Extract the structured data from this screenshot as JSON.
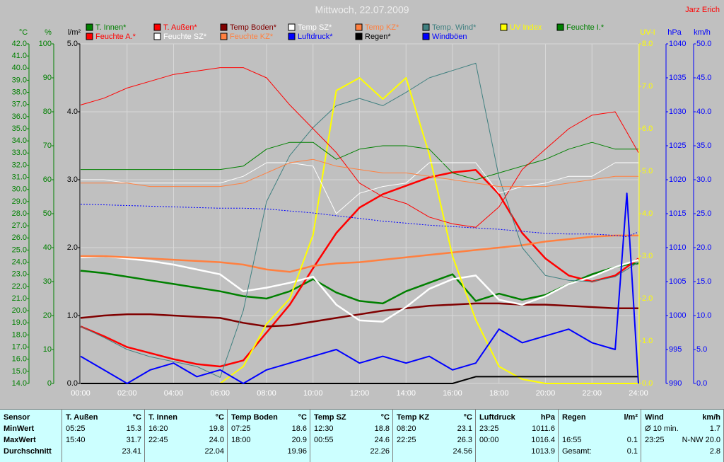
{
  "chart_data": {
    "type": "line",
    "title": "Mittwoch, 22.07.2009",
    "author": "Jarz Erich",
    "x": [
      0,
      1,
      2,
      3,
      4,
      5,
      6,
      7,
      8,
      9,
      10,
      11,
      12,
      13,
      14,
      15,
      16,
      17,
      18,
      19,
      20,
      21,
      22,
      23,
      23.5,
      24
    ],
    "xlim": [
      0,
      24
    ],
    "xticks": [
      {
        "value": 0,
        "label": "00:00"
      },
      {
        "value": 2,
        "label": "02:00"
      },
      {
        "value": 4,
        "label": "04:00"
      },
      {
        "value": 6,
        "label": "06:00"
      },
      {
        "value": 8,
        "label": "08:00"
      },
      {
        "value": 10,
        "label": "10:00"
      },
      {
        "value": 12,
        "label": "12:00"
      },
      {
        "value": 14,
        "label": "14:00"
      },
      {
        "value": 16,
        "label": "16:00"
      },
      {
        "value": 18,
        "label": "18:00"
      },
      {
        "value": 20,
        "label": "20:00"
      },
      {
        "value": 22,
        "label": "22:00"
      },
      {
        "value": 24,
        "label": "24:00"
      }
    ],
    "grid": true,
    "axes": [
      {
        "label": "°C",
        "side": "left",
        "color": "#008000",
        "lim": [
          14,
          42
        ],
        "ticks": [
          {
            "value": 14,
            "label": "14.0"
          },
          {
            "value": 15,
            "label": "15.0"
          },
          {
            "value": 16,
            "label": "16.0"
          },
          {
            "value": 17,
            "label": "17.0"
          },
          {
            "value": 18,
            "label": "18.0"
          },
          {
            "value": 19,
            "label": "19.0"
          },
          {
            "value": 20,
            "label": "20.0"
          },
          {
            "value": 21,
            "label": "21.0"
          },
          {
            "value": 22,
            "label": "22.0"
          },
          {
            "value": 23,
            "label": "23.0"
          },
          {
            "value": 24,
            "label": "24.0"
          },
          {
            "value": 25,
            "label": "25.0"
          },
          {
            "value": 26,
            "label": "26.0"
          },
          {
            "value": 27,
            "label": "27.0"
          },
          {
            "value": 28,
            "label": "28.0"
          },
          {
            "value": 29,
            "label": "29.0"
          },
          {
            "value": 30,
            "label": "30.0"
          },
          {
            "value": 31,
            "label": "31.0"
          },
          {
            "value": 32,
            "label": "32.0"
          },
          {
            "value": 33,
            "label": "33.0"
          },
          {
            "value": 34,
            "label": "34.0"
          },
          {
            "value": 35,
            "label": "35.0"
          },
          {
            "value": 36,
            "label": "36.0"
          },
          {
            "value": 37,
            "label": "37.0"
          },
          {
            "value": 38,
            "label": "38.0"
          },
          {
            "value": 39,
            "label": "39.0"
          },
          {
            "value": 40,
            "label": "40.0"
          },
          {
            "value": 41,
            "label": "41.0"
          },
          {
            "value": 42,
            "label": "42.0"
          }
        ]
      },
      {
        "label": "%",
        "side": "left",
        "color": "#008000",
        "lim": [
          0,
          100
        ],
        "ticks": [
          0,
          10,
          20,
          30,
          40,
          50,
          60,
          70,
          80,
          90,
          100
        ]
      },
      {
        "label": "l/m²",
        "side": "left",
        "color": "#000000",
        "lim": [
          0,
          5
        ],
        "grid": true,
        "ticks": [
          {
            "value": 0,
            "label": "0.0"
          },
          {
            "value": 1,
            "label": "1.0"
          },
          {
            "value": 2,
            "label": "2.0"
          },
          {
            "value": 3,
            "label": "3.0"
          },
          {
            "value": 4,
            "label": "4.0"
          },
          {
            "value": 5,
            "label": "5.0"
          }
        ]
      },
      {
        "label": "UV-I",
        "side": "right",
        "color": "#ffff00",
        "lim": [
          0,
          8
        ],
        "ticks": [
          {
            "value": 0,
            "label": "0.0"
          },
          {
            "value": 1,
            "label": "1.0"
          },
          {
            "value": 2,
            "label": "2.0"
          },
          {
            "value": 3,
            "label": "3.0"
          },
          {
            "value": 4,
            "label": "4.0"
          },
          {
            "value": 5,
            "label": "5.0"
          },
          {
            "value": 6,
            "label": "6.0"
          },
          {
            "value": 7,
            "label": "7.0"
          },
          {
            "value": 8,
            "label": "8.0"
          }
        ]
      },
      {
        "label": "hPa",
        "side": "right",
        "color": "#0000ff",
        "lim": [
          990,
          1040
        ],
        "ticks": [
          990,
          995,
          1000,
          1005,
          1010,
          1015,
          1020,
          1025,
          1030,
          1035,
          1040
        ]
      },
      {
        "label": "km/h",
        "side": "right",
        "color": "#0000ff",
        "lim": [
          0,
          50
        ],
        "ticks": [
          {
            "value": 0,
            "label": "0.0"
          },
          {
            "value": 5,
            "label": "5.0"
          },
          {
            "value": 10,
            "label": "10.0"
          },
          {
            "value": 15,
            "label": "15.0"
          },
          {
            "value": 20,
            "label": "20.0"
          },
          {
            "value": 25,
            "label": "25.0"
          },
          {
            "value": 30,
            "label": "30.0"
          },
          {
            "value": 35,
            "label": "35.0"
          },
          {
            "value": 40,
            "label": "40.0"
          },
          {
            "value": 45,
            "label": "45.0"
          },
          {
            "value": 50,
            "label": "50.0"
          }
        ]
      }
    ],
    "series": [
      {
        "name": "T. Innen*",
        "color": "#008000",
        "axis": "°C",
        "linewidth": 2.5,
        "values": [
          23.3,
          23.1,
          22.8,
          22.5,
          22.2,
          21.9,
          21.6,
          21.2,
          21.0,
          21.6,
          22.6,
          21.5,
          20.8,
          20.6,
          21.6,
          22.3,
          23.0,
          20.8,
          21.4,
          20.9,
          21.3,
          22.2,
          23.0,
          23.6,
          23.8,
          23.9
        ]
      },
      {
        "name": "T. Außen*",
        "color": "#ff0000",
        "axis": "°C",
        "linewidth": 2.5,
        "values": [
          18.7,
          17.9,
          17.0,
          16.5,
          16.0,
          15.6,
          15.4,
          15.9,
          18.2,
          20.5,
          23.5,
          26.4,
          28.5,
          29.6,
          30.3,
          31.0,
          31.4,
          31.6,
          29.6,
          26.4,
          24.3,
          22.9,
          22.4,
          22.9,
          23.6,
          24.3
        ]
      },
      {
        "name": "Temp Boden*",
        "color": "#800000",
        "axis": "°C",
        "linewidth": 2.5,
        "values": [
          19.4,
          19.6,
          19.7,
          19.7,
          19.6,
          19.5,
          19.4,
          19.0,
          18.7,
          18.8,
          19.1,
          19.4,
          19.7,
          20.0,
          20.2,
          20.4,
          20.5,
          20.6,
          20.6,
          20.5,
          20.5,
          20.4,
          20.3,
          20.2,
          20.2,
          20.2
        ]
      },
      {
        "name": "Temp SZ*",
        "color": "#ffffff",
        "axis": "°C",
        "linewidth": 2.5,
        "values": [
          24.4,
          24.5,
          24.3,
          24.1,
          23.8,
          23.4,
          23.0,
          21.6,
          21.9,
          22.3,
          22.8,
          20.5,
          19.2,
          19.1,
          20.3,
          21.8,
          22.6,
          22.9,
          20.9,
          20.5,
          21.2,
          22.2,
          22.8,
          23.6,
          23.9,
          24.2
        ]
      },
      {
        "name": "Temp KZ*",
        "color": "#ff8040",
        "axis": "°C",
        "linewidth": 2.5,
        "values": [
          24.5,
          24.5,
          24.4,
          24.3,
          24.2,
          24.1,
          24.0,
          23.8,
          23.4,
          23.2,
          23.7,
          23.9,
          24.0,
          24.2,
          24.4,
          24.6,
          24.8,
          25.0,
          25.2,
          25.4,
          25.7,
          25.9,
          26.1,
          26.2,
          26.2,
          26.2
        ]
      },
      {
        "name": "Temp. Wind*",
        "color": "#408080",
        "axis": "°C",
        "linewidth": 1,
        "values": [
          18.7,
          17.8,
          16.8,
          16.2,
          15.8,
          15.4,
          14.5,
          20.0,
          29.0,
          32.8,
          35.1,
          36.9,
          37.5,
          36.9,
          38.0,
          39.2,
          39.8,
          40.4,
          31.0,
          25.2,
          22.9,
          22.5,
          22.4,
          22.8,
          23.4,
          24.0
        ]
      },
      {
        "name": "UV Index",
        "color": "#ffff00",
        "axis": "UV-I",
        "linewidth": 2,
        "values": [
          0,
          0,
          0,
          0,
          0,
          0,
          0,
          0.4,
          1.4,
          2.0,
          3.5,
          6.9,
          7.2,
          6.7,
          7.2,
          5.4,
          3.0,
          1.5,
          0.4,
          0.1,
          0,
          0,
          0,
          0,
          0,
          0
        ]
      },
      {
        "name": "Feuchte I.*",
        "color": "#008000",
        "axis": "%",
        "linewidth": 1,
        "values": [
          63,
          63,
          63,
          63,
          63,
          63,
          63,
          64,
          69,
          71,
          71,
          66,
          69,
          70,
          70,
          69,
          62,
          60,
          62,
          64,
          66,
          69,
          71,
          69,
          69,
          69
        ]
      },
      {
        "name": "Feuchte A.*",
        "color": "#ff0000",
        "axis": "%",
        "linewidth": 1,
        "values": [
          82,
          84,
          87,
          89,
          91,
          92,
          93,
          93,
          90,
          82,
          75,
          68,
          59,
          55,
          53,
          49,
          47,
          46,
          52,
          63,
          69,
          75,
          79,
          80,
          74,
          68
        ]
      },
      {
        "name": "Feuchte SZ*",
        "color": "#ffffff",
        "axis": "%",
        "linewidth": 1,
        "values": [
          60,
          60,
          59,
          59,
          59,
          59,
          59,
          61,
          65,
          65,
          64,
          50,
          56,
          58,
          59,
          65,
          65,
          65,
          56,
          58,
          59,
          61,
          61,
          65,
          65,
          65
        ]
      },
      {
        "name": "Feuchte KZ*",
        "color": "#ff8040",
        "axis": "%",
        "linewidth": 1,
        "values": [
          59,
          59,
          59,
          58,
          58,
          58,
          58,
          59,
          62,
          65,
          66,
          64,
          63,
          62,
          62,
          61,
          60,
          59,
          58,
          58,
          58,
          59,
          60,
          61,
          61,
          61
        ]
      },
      {
        "name": "Luftdruck*",
        "color": "#0000ff",
        "axis": "hPa",
        "linewidth": 1,
        "linestyle": "dotted",
        "values": [
          1016.4,
          1016.3,
          1016.2,
          1016.1,
          1016.0,
          1015.9,
          1015.8,
          1015.8,
          1015.7,
          1015.4,
          1015.1,
          1014.7,
          1014.3,
          1013.9,
          1013.6,
          1013.3,
          1013.1,
          1012.9,
          1012.7,
          1012.4,
          1012.1,
          1012.0,
          1012.0,
          1011.8,
          1011.6,
          1012.3
        ]
      },
      {
        "name": "Regen*",
        "color": "#000000",
        "axis": "l/m²",
        "linewidth": 2,
        "values": [
          0,
          0,
          0,
          0,
          0,
          0,
          0,
          0,
          0,
          0,
          0,
          0,
          0,
          0,
          0,
          0,
          0,
          0.1,
          0.1,
          0.1,
          0.1,
          0.1,
          0.1,
          0.1,
          0.1,
          0.1
        ]
      },
      {
        "name": "Windböen",
        "color": "#0000ff",
        "axis": "km/h",
        "linewidth": 2,
        "values": [
          4,
          2,
          0,
          2,
          3,
          1,
          2,
          0,
          2,
          3,
          4,
          5,
          3,
          4,
          3,
          4,
          2,
          3,
          8,
          6,
          7,
          8,
          6,
          5,
          28,
          0
        ]
      }
    ]
  },
  "stats": {
    "header": "Sensor",
    "row_labels": [
      "MinWert",
      "MaxWert",
      "Durchschnitt"
    ],
    "groups": [
      {
        "name": "T. Außen",
        "unit": "°C",
        "rows": [
          [
            "05:25",
            "15.3"
          ],
          [
            "15:40",
            "31.7"
          ],
          [
            null,
            "23.41"
          ]
        ]
      },
      {
        "name": "T. Innen",
        "unit": "°C",
        "rows": [
          [
            "16:20",
            "19.8"
          ],
          [
            "22:45",
            "24.0"
          ],
          [
            null,
            "22.04"
          ]
        ]
      },
      {
        "name": "Temp Boden",
        "unit": "°C",
        "rows": [
          [
            "07:25",
            "18.6"
          ],
          [
            "18:00",
            "20.9"
          ],
          [
            null,
            "19.96"
          ]
        ]
      },
      {
        "name": "Temp SZ",
        "unit": "°C",
        "rows": [
          [
            "12:30",
            "18.8"
          ],
          [
            "00:55",
            "24.6"
          ],
          [
            null,
            "22.26"
          ]
        ]
      },
      {
        "name": "Temp KZ",
        "unit": "°C",
        "rows": [
          [
            "08:20",
            "23.1"
          ],
          [
            "22:25",
            "26.3"
          ],
          [
            null,
            "24.56"
          ]
        ]
      },
      {
        "name": "Luftdruck",
        "unit": "hPa",
        "rows": [
          [
            "23:25",
            "1011.6"
          ],
          [
            "00:00",
            "1016.4"
          ],
          [
            null,
            "1013.9"
          ]
        ]
      },
      {
        "name": "Regen",
        "unit": "l/m²",
        "rows": [
          [
            null,
            null
          ],
          [
            "16:55",
            "0.1"
          ],
          [
            "Gesamt:",
            "0.1"
          ]
        ]
      },
      {
        "name": "Wind",
        "unit": "km/h",
        "rows": [
          [
            "Ø 10 min.",
            "1.7"
          ],
          [
            "23:25",
            "N-NW 20.0"
          ],
          [
            null,
            "2.8"
          ]
        ]
      }
    ]
  }
}
